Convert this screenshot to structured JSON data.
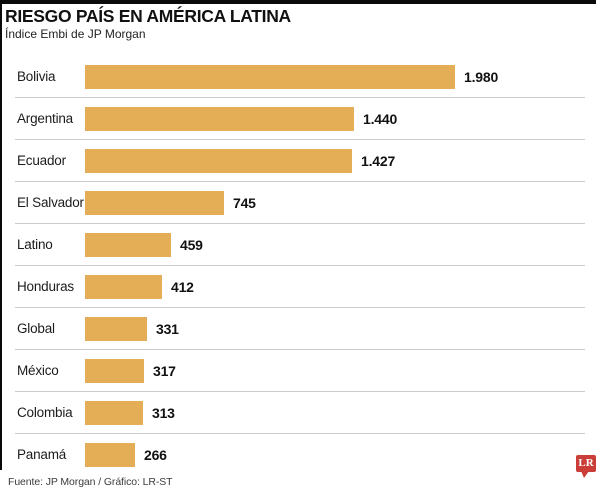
{
  "header": {
    "title": "RIESGO PAÍS EN AMÉRICA LATINA",
    "subtitle": "Índice Embi de JP Morgan"
  },
  "footer": {
    "source": "Fuente: JP Morgan / Gráfico: LR-ST",
    "logo_text": "LR"
  },
  "colors": {
    "bar": "#e3ae55",
    "separator": "#cbcbcb",
    "top_rule": "#0a0a0a",
    "logo_red": "#cb3d38"
  },
  "chart_data": {
    "type": "bar",
    "orientation": "horizontal",
    "title": "RIESGO PAÍS EN AMÉRICA LATINA",
    "subtitle": "Índice Embi de JP Morgan",
    "categories": [
      "Bolivia",
      "Argentina",
      "Ecuador",
      "El Salvador",
      "Latino",
      "Honduras",
      "Global",
      "México",
      "Colombia",
      "Panamá"
    ],
    "values": [
      1980,
      1440,
      1427,
      745,
      459,
      412,
      331,
      317,
      313,
      266
    ],
    "value_labels": [
      "1.980",
      "1.440",
      "1.427",
      "745",
      "459",
      "412",
      "331",
      "317",
      "313",
      "266"
    ],
    "xlim": [
      0,
      1980
    ],
    "legend": "none",
    "grid": "row-separators-only"
  }
}
